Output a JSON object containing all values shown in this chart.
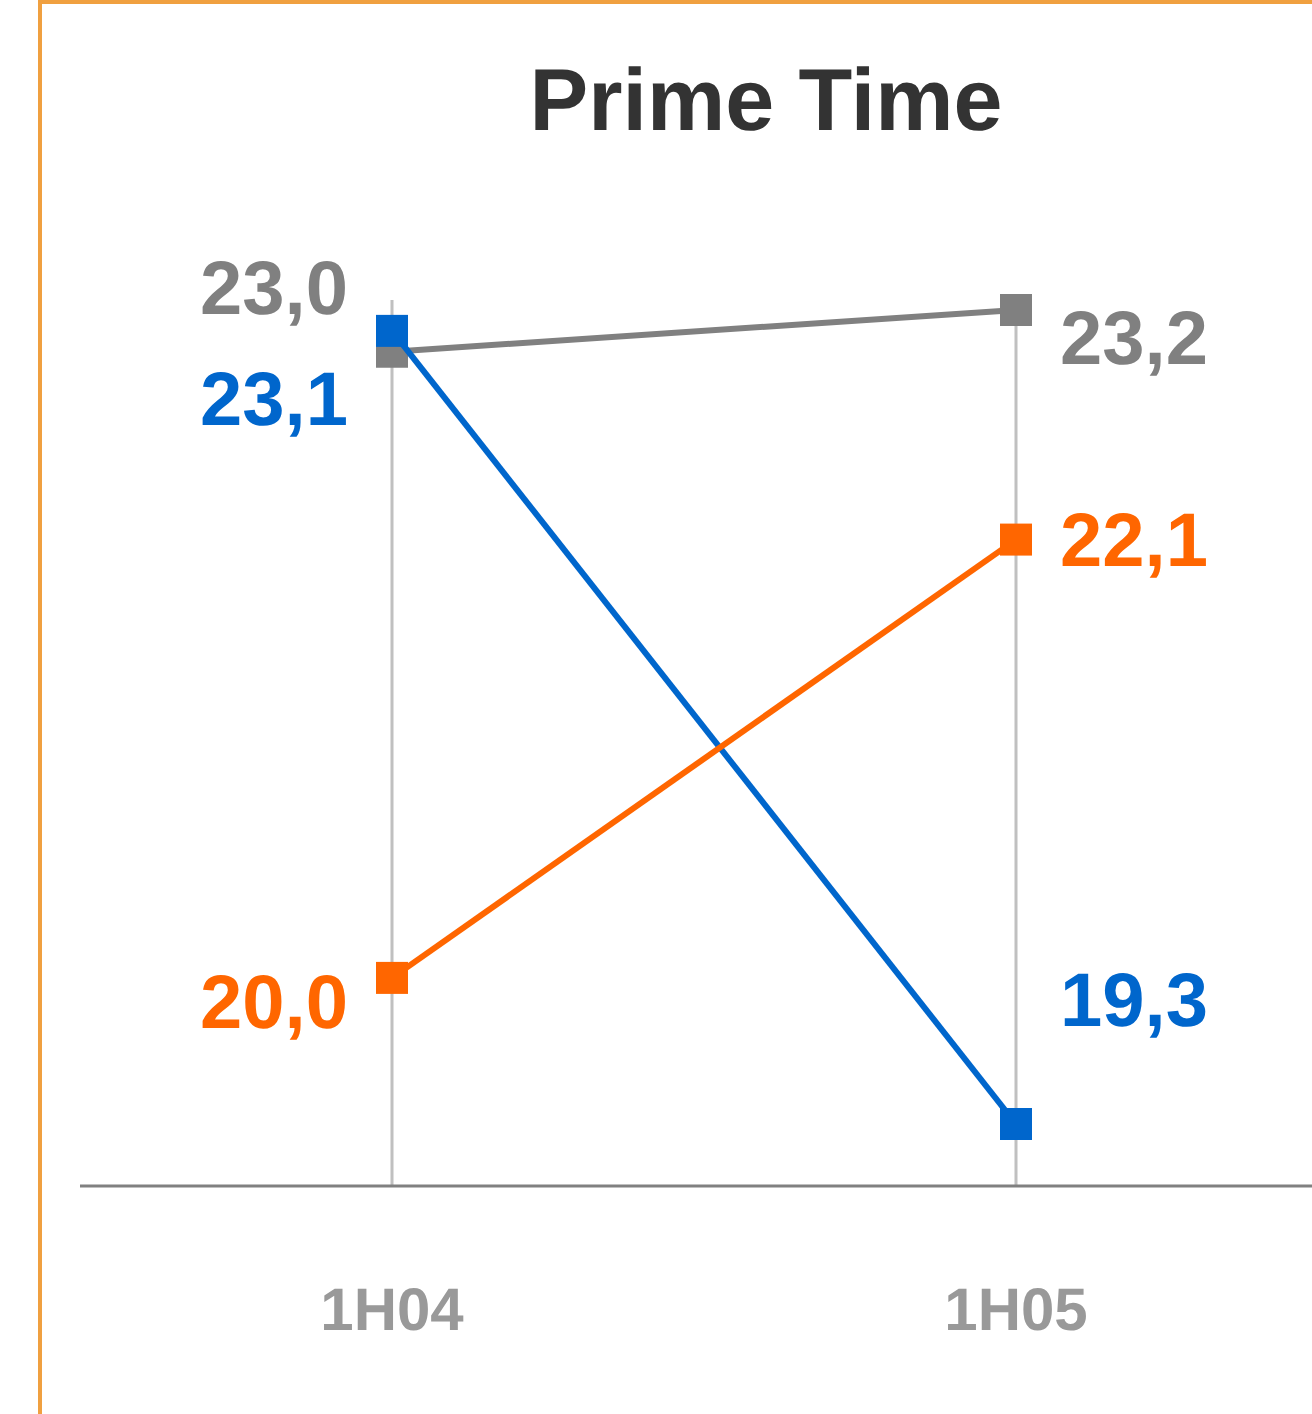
{
  "chart_data": {
    "type": "line",
    "title": "Prime Time",
    "categories": [
      "1H04",
      "1H05"
    ],
    "series": [
      {
        "color": "#808080",
        "values": [
          23.0,
          23.2
        ],
        "value_labels": [
          "23,0",
          "23,2"
        ]
      },
      {
        "color": "#0066cc",
        "values": [
          23.1,
          19.3
        ],
        "value_labels": [
          "23,1",
          "19,3"
        ]
      },
      {
        "color": "#ff6600",
        "values": [
          20.0,
          22.1
        ],
        "value_labels": [
          "20,0",
          "22,1"
        ]
      }
    ],
    "tick_labels": "x",
    "grid": "x",
    "marker": "square",
    "line_style": "solid"
  }
}
